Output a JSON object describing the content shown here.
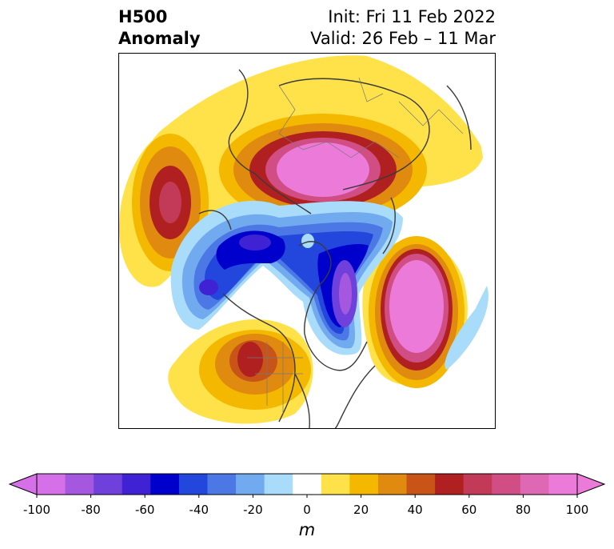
{
  "header": {
    "title_line1": "H500",
    "title_line2": "Anomaly",
    "init_text": "Init: Fri 11 Feb 2022",
    "valid_text": "Valid: 26 Feb – 11 Mar"
  },
  "colorbar": {
    "unit": "m",
    "ticks": [
      "-100",
      "-80",
      "-60",
      "-40",
      "-20",
      "0",
      "20",
      "40",
      "60",
      "80",
      "100"
    ],
    "levels": [
      -100,
      -90,
      -80,
      -70,
      -60,
      -50,
      -40,
      -30,
      -20,
      -10,
      10,
      20,
      30,
      40,
      50,
      60,
      70,
      80,
      90,
      100
    ],
    "colors": [
      "#d670e8",
      "#a557e0",
      "#7040dc",
      "#3f22d4",
      "#0000cc",
      "#2346dc",
      "#4c78e6",
      "#72aaf0",
      "#a9dcfa",
      "#ffffff",
      "#ffe24a",
      "#f5b800",
      "#e08a10",
      "#c95418",
      "#b02020",
      "#c23a58",
      "#d04e84",
      "#de68b4",
      "#ec7ad8"
    ],
    "extend": "both"
  },
  "map": {
    "projection": "north-polar-stereographic",
    "features": [
      {
        "name": "ural-high",
        "sign": "positive",
        "peak": 100
      },
      {
        "name": "north-atlantic-high",
        "sign": "positive",
        "peak": 100
      },
      {
        "name": "west-us-ridge",
        "sign": "positive",
        "peak": 60
      },
      {
        "name": "north-pacific-ridge",
        "sign": "positive",
        "peak": 60
      },
      {
        "name": "hudson-bay-trough",
        "sign": "negative",
        "peak": -80
      },
      {
        "name": "siberian-trough",
        "sign": "negative",
        "peak": -60
      }
    ]
  }
}
